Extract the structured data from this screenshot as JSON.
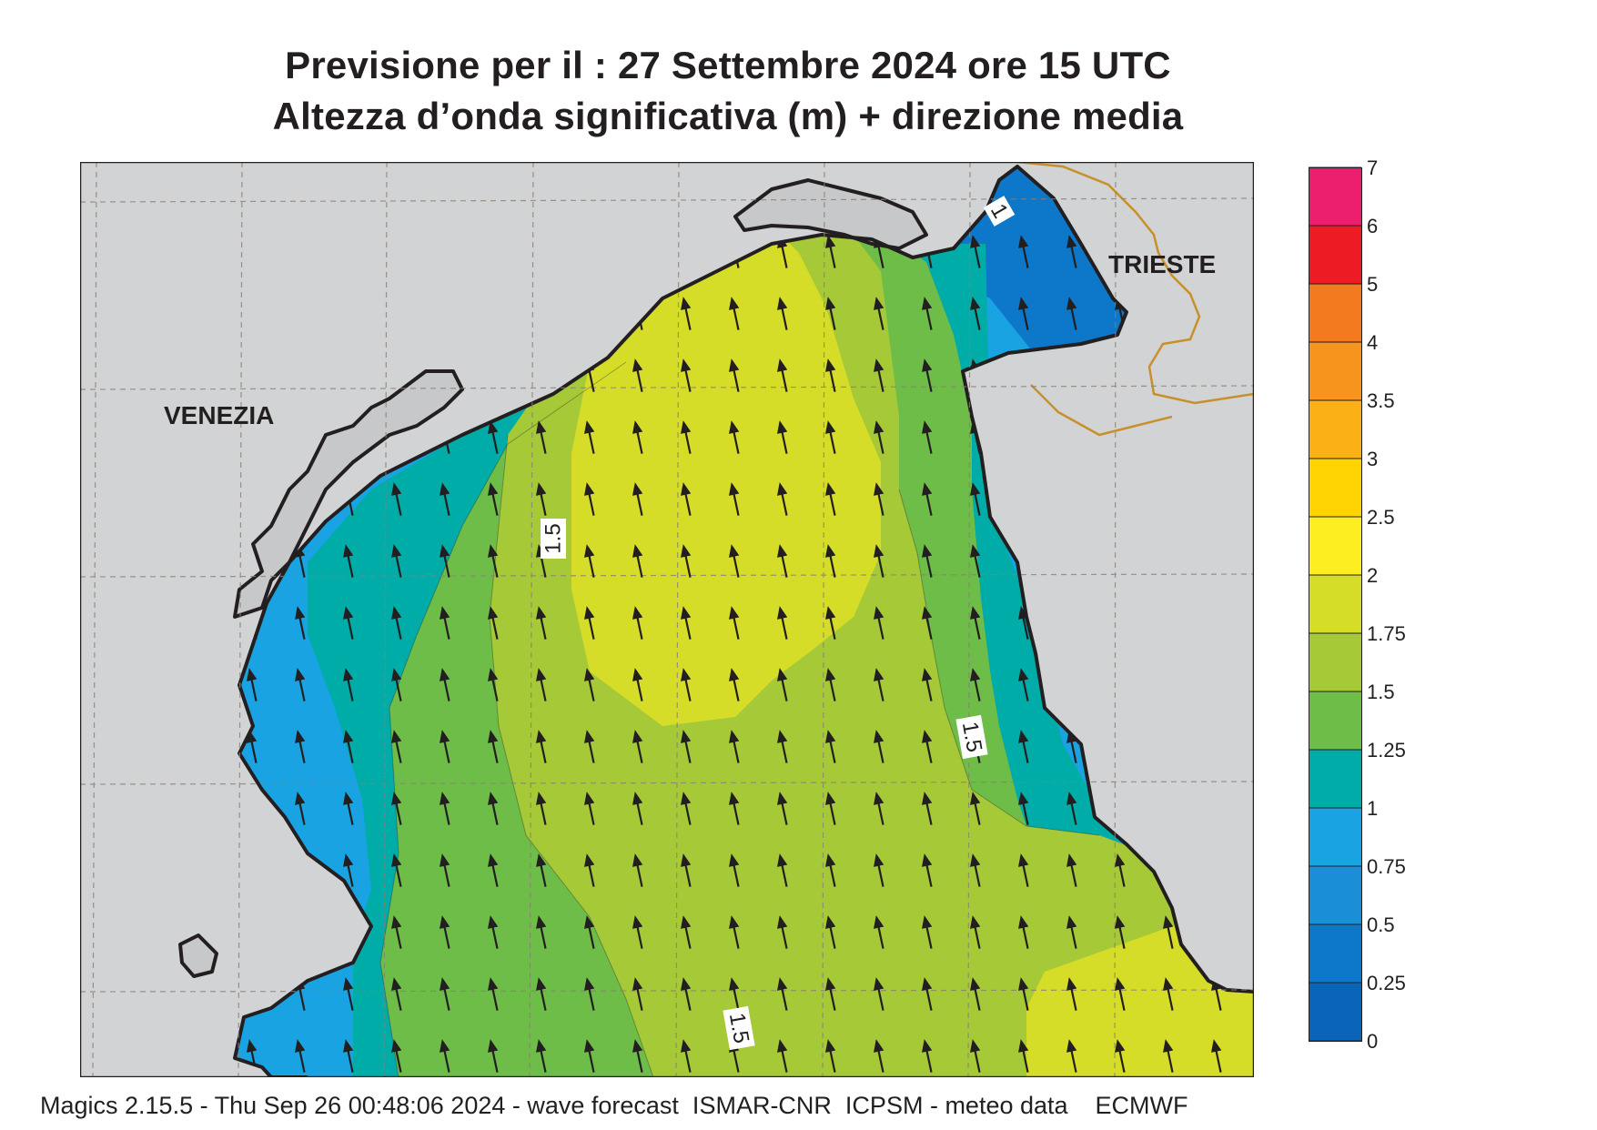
{
  "title": {
    "line1": "Previsione per il  :  27 Settembre 2024   ore 15 UTC",
    "line2": "Altezza d’onda significativa (m) + direzione media"
  },
  "map": {
    "cities": [
      {
        "name": "VENEZIA"
      },
      {
        "name": "TRIESTE"
      }
    ],
    "contour_labels": [
      "1.5",
      "1.5",
      "1.5",
      "1"
    ],
    "wave_direction": "from south-southeast toward north-northwest",
    "land_color": "#d1d3d4",
    "coast_color": "#231f20",
    "border_color": "#c8902c"
  },
  "legend": {
    "ticks": [
      "0",
      "0.25",
      "0.5",
      "0.75",
      "1",
      "1.25",
      "1.5",
      "1.75",
      "2",
      "2.5",
      "3",
      "3.5",
      "4",
      "5",
      "6",
      "7"
    ],
    "colors": [
      "#0a65b8",
      "#0d78c9",
      "#1a8fd8",
      "#19a3e2",
      "#00aca8",
      "#6ebd49",
      "#a6ca37",
      "#d6dd28",
      "#fcee21",
      "#ffd400",
      "#fbb116",
      "#f7941d",
      "#f47a20",
      "#ed1c24",
      "#ec1f6f"
    ]
  },
  "footer": "Magics 2.15.5 - Thu Sep 26 00:48:06 2024 - wave forecast  ISMAR-CNR  ICPSM - meteo data    ECMWF"
}
